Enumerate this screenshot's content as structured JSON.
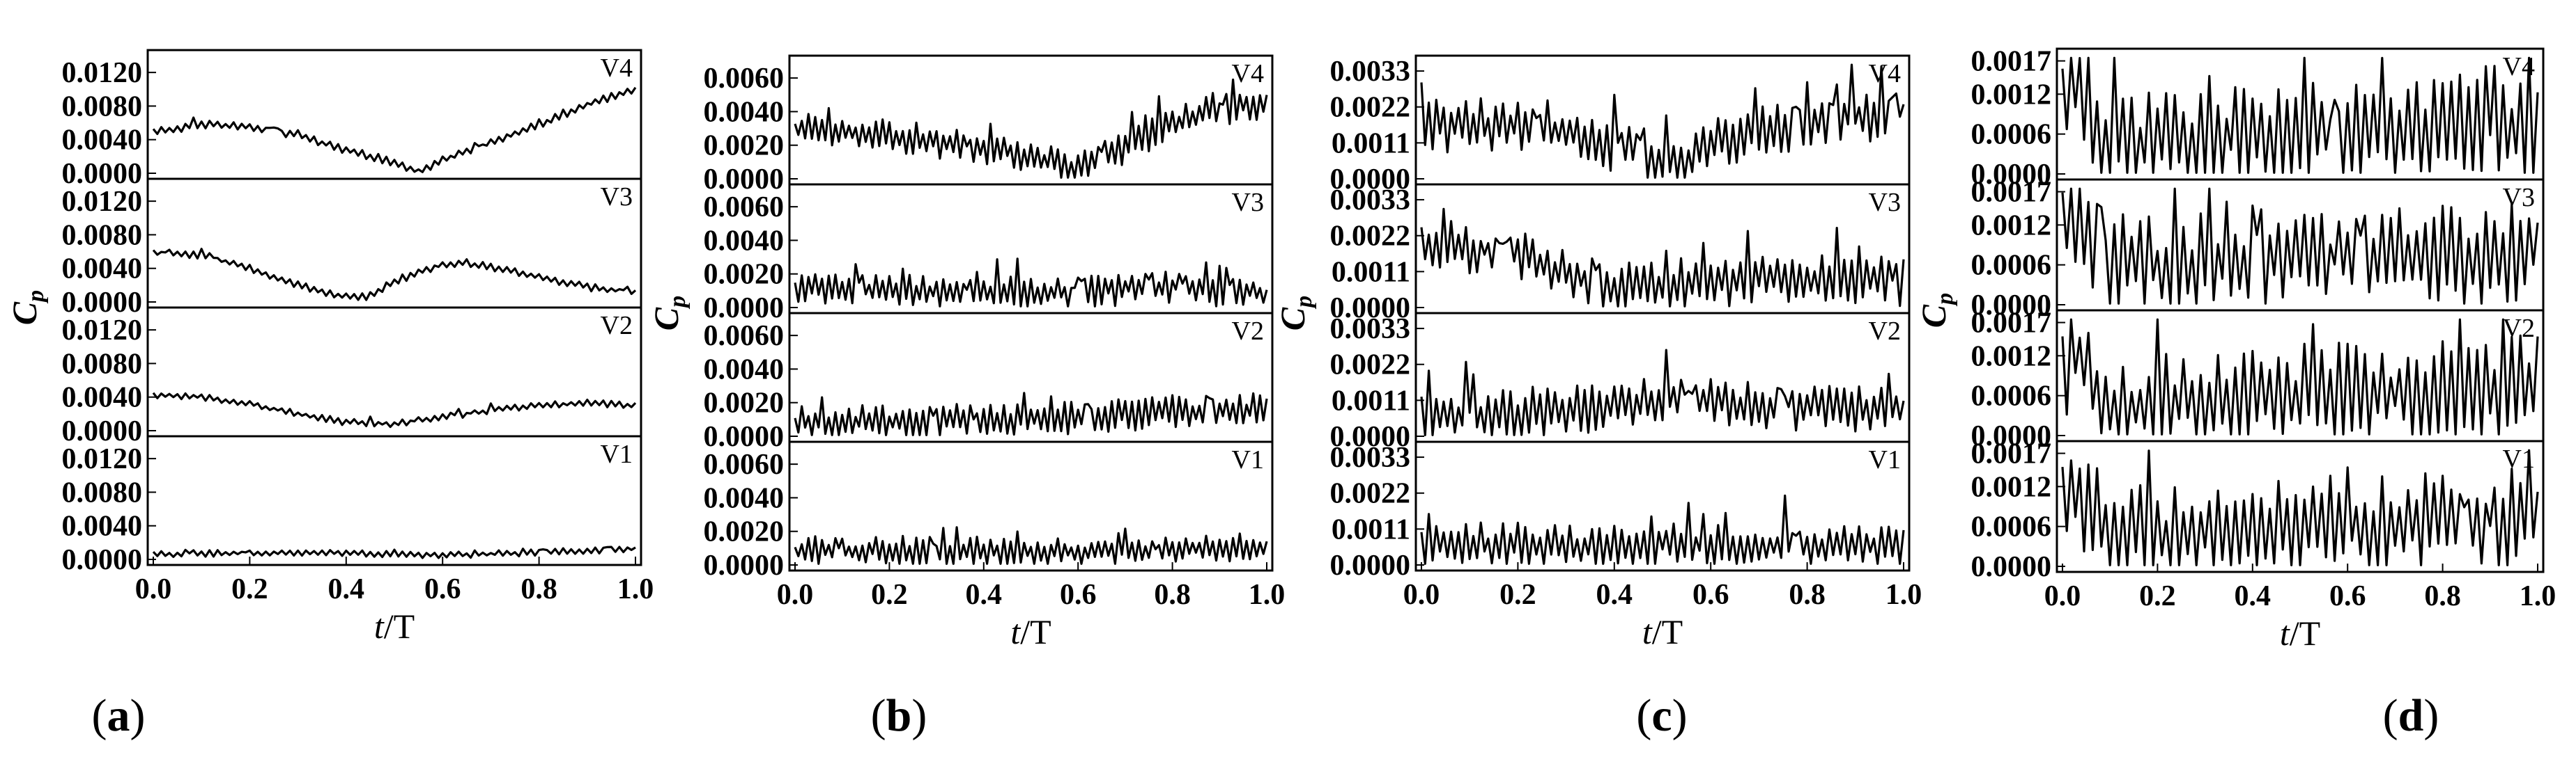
{
  "figure": {
    "caption_style": "paren-letter"
  },
  "panels": [
    {
      "caption": "a",
      "xlabel_italic": "t",
      "xlabel_rest": "/T",
      "ylabel_main": "C",
      "ylabel_sub": "p",
      "xticks": [
        "0.0",
        "0.2",
        "0.4",
        "0.6",
        "0.8",
        "1.0"
      ],
      "yticks": [
        "0.0000",
        "0.0040",
        "0.0080",
        "0.0120"
      ],
      "subplots": [
        {
          "label": "V4"
        },
        {
          "label": "V3"
        },
        {
          "label": "V2"
        },
        {
          "label": "V1"
        }
      ]
    },
    {
      "caption": "b",
      "xlabel_italic": "t",
      "xlabel_rest": "/T",
      "ylabel_main": "C",
      "ylabel_sub": "p",
      "xticks": [
        "0.0",
        "0.2",
        "0.4",
        "0.6",
        "0.8",
        "1.0"
      ],
      "yticks": [
        "0.0000",
        "0.0020",
        "0.0040",
        "0.0060"
      ],
      "subplots": [
        {
          "label": "V4"
        },
        {
          "label": "V3"
        },
        {
          "label": "V2"
        },
        {
          "label": "V1"
        }
      ]
    },
    {
      "caption": "c",
      "xlabel_italic": "t",
      "xlabel_rest": "/T",
      "ylabel_main": "C",
      "ylabel_sub": "p",
      "xticks": [
        "0.0",
        "0.2",
        "0.4",
        "0.6",
        "0.8",
        "1.0"
      ],
      "yticks": [
        "0.0000",
        "0.0011",
        "0.0022",
        "0.0033"
      ],
      "subplots": [
        {
          "label": "V4"
        },
        {
          "label": "V3"
        },
        {
          "label": "V2"
        },
        {
          "label": "V1"
        }
      ]
    },
    {
      "caption": "d",
      "xlabel_italic": "t",
      "xlabel_rest": "/T",
      "ylabel_main": "C",
      "ylabel_sub": "p",
      "xticks": [
        "0.0",
        "0.2",
        "0.4",
        "0.6",
        "0.8",
        "1.0"
      ],
      "yticks": [
        "0.0000",
        "0.0006",
        "0.0012",
        "0.0017"
      ],
      "subplots": [
        {
          "label": "V4"
        },
        {
          "label": "V3"
        },
        {
          "label": "V2"
        },
        {
          "label": "V1"
        }
      ]
    }
  ],
  "chart_data": [
    {
      "type": "line",
      "panel": "a",
      "title": "",
      "xlabel": "t/T",
      "ylabel": "Cp",
      "xlim": [
        0,
        1
      ],
      "ylim": [
        0,
        0.014
      ],
      "yticks": [
        0,
        0.004,
        0.008,
        0.012
      ],
      "series": [
        {
          "name": "V4",
          "x": [
            0,
            0.1,
            0.2,
            0.3,
            0.4,
            0.5,
            0.55,
            0.6,
            0.7,
            0.8,
            0.9,
            1.0
          ],
          "values": [
            0.0049,
            0.0058,
            0.0056,
            0.0045,
            0.0028,
            0.0013,
            0.0003,
            0.0015,
            0.0036,
            0.0058,
            0.0082,
            0.01
          ],
          "noise": 0.0005,
          "jitter_points": 120
        },
        {
          "name": "V3",
          "x": [
            0,
            0.1,
            0.2,
            0.3,
            0.4,
            0.45,
            0.5,
            0.6,
            0.7,
            0.8,
            0.9,
            1.0
          ],
          "values": [
            0.0058,
            0.0056,
            0.004,
            0.002,
            0.0006,
            0.0007,
            0.0025,
            0.0045,
            0.0042,
            0.003,
            0.0018,
            0.0012
          ],
          "noise": 0.0005,
          "jitter_points": 120
        },
        {
          "name": "V2",
          "x": [
            0,
            0.1,
            0.2,
            0.3,
            0.4,
            0.5,
            0.6,
            0.7,
            0.8,
            0.9,
            1.0
          ],
          "values": [
            0.0042,
            0.004,
            0.0032,
            0.002,
            0.001,
            0.0008,
            0.0016,
            0.0024,
            0.003,
            0.0033,
            0.003
          ],
          "noise": 0.0004,
          "jitter_points": 120
        },
        {
          "name": "V1",
          "x": [
            0,
            0.2,
            0.4,
            0.6,
            0.8,
            1.0
          ],
          "values": [
            0.0006,
            0.0008,
            0.0007,
            0.0005,
            0.0008,
            0.0013
          ],
          "noise": 0.0004,
          "jitter_points": 120
        }
      ]
    },
    {
      "type": "line",
      "panel": "b",
      "title": "",
      "xlabel": "t/T",
      "ylabel": "Cp",
      "xlim": [
        0,
        1
      ],
      "ylim": [
        0,
        0.007
      ],
      "yticks": [
        0,
        0.002,
        0.004,
        0.006
      ],
      "series": [
        {
          "name": "V4",
          "x": [
            0,
            0.1,
            0.2,
            0.3,
            0.4,
            0.5,
            0.6,
            0.7,
            0.8,
            0.9,
            1.0
          ],
          "values": [
            0.003,
            0.0028,
            0.0026,
            0.0022,
            0.0018,
            0.0012,
            0.0006,
            0.0018,
            0.0032,
            0.0042,
            0.0045
          ],
          "noise": 0.001,
          "jitter_points": 140
        },
        {
          "name": "V3",
          "x": [
            0,
            0.2,
            0.4,
            0.6,
            0.8,
            1.0
          ],
          "values": [
            0.0012,
            0.001,
            0.0009,
            0.0009,
            0.0012,
            0.0008
          ],
          "noise": 0.001,
          "jitter_points": 140
        },
        {
          "name": "V2",
          "x": [
            0,
            0.2,
            0.4,
            0.6,
            0.8,
            1.0
          ],
          "values": [
            0.0008,
            0.0009,
            0.001,
            0.0011,
            0.0014,
            0.0016
          ],
          "noise": 0.001,
          "jitter_points": 140
        },
        {
          "name": "V1",
          "x": [
            0,
            0.2,
            0.4,
            0.6,
            0.8,
            1.0
          ],
          "values": [
            0.0008,
            0.0009,
            0.0008,
            0.0008,
            0.0009,
            0.0009
          ],
          "noise": 0.0009,
          "jitter_points": 140
        }
      ]
    },
    {
      "type": "line",
      "panel": "c",
      "title": "",
      "xlabel": "t/T",
      "ylabel": "Cp",
      "xlim": [
        0,
        1
      ],
      "ylim": [
        0,
        0.0036
      ],
      "yticks": [
        0,
        0.0011,
        0.0022,
        0.0033
      ],
      "series": [
        {
          "name": "V4",
          "x": [
            0,
            0.1,
            0.2,
            0.3,
            0.4,
            0.5,
            0.55,
            0.6,
            0.7,
            0.8,
            0.9,
            1.0
          ],
          "values": [
            0.0016,
            0.0016,
            0.0016,
            0.0015,
            0.001,
            0.0006,
            0.0004,
            0.001,
            0.0015,
            0.0017,
            0.0019,
            0.002
          ],
          "noise": 0.0008,
          "jitter_points": 130
        },
        {
          "name": "V3",
          "x": [
            0,
            0.1,
            0.2,
            0.3,
            0.4,
            0.5,
            0.6,
            0.7,
            0.8,
            0.9,
            1.0
          ],
          "values": [
            0.002,
            0.0018,
            0.0016,
            0.001,
            0.0006,
            0.0007,
            0.0008,
            0.0009,
            0.0009,
            0.0009,
            0.0008
          ],
          "noise": 0.0008,
          "jitter_points": 130
        },
        {
          "name": "V2",
          "x": [
            0,
            0.2,
            0.4,
            0.5,
            0.6,
            0.8,
            1.0
          ],
          "values": [
            0.0006,
            0.0007,
            0.0009,
            0.0012,
            0.001,
            0.0009,
            0.0008
          ],
          "noise": 0.0008,
          "jitter_points": 130
        },
        {
          "name": "V1",
          "x": [
            0,
            0.2,
            0.4,
            0.6,
            0.8,
            1.0
          ],
          "values": [
            0.0006,
            0.0006,
            0.0005,
            0.0006,
            0.0006,
            0.0005
          ],
          "noise": 0.0007,
          "jitter_points": 130
        }
      ]
    },
    {
      "type": "line",
      "panel": "d",
      "title": "",
      "xlabel": "t/T",
      "ylabel": "Cp",
      "xlim": [
        0,
        1
      ],
      "ylim": [
        0,
        0.0018
      ],
      "yticks": [
        0,
        0.0006,
        0.0012,
        0.0017
      ],
      "series": [
        {
          "name": "V4",
          "x": [
            0,
            0.02,
            0.1,
            0.3,
            0.5,
            0.7,
            0.9,
            1.0
          ],
          "values": [
            0.0009,
            0.0016,
            0.0004,
            0.0005,
            0.0006,
            0.0006,
            0.0008,
            0.0006
          ],
          "noise": 0.0008,
          "jitter_points": 110
        },
        {
          "name": "V3",
          "x": [
            0,
            0.02,
            0.1,
            0.3,
            0.5,
            0.7,
            0.9,
            1.0
          ],
          "values": [
            0.001,
            0.0014,
            0.0006,
            0.0006,
            0.0007,
            0.0007,
            0.0007,
            0.0009
          ],
          "noise": 0.0008,
          "jitter_points": 110
        },
        {
          "name": "V2",
          "x": [
            0,
            0.02,
            0.1,
            0.3,
            0.5,
            0.7,
            0.9,
            1.0
          ],
          "values": [
            0.0008,
            0.0013,
            0.0004,
            0.0005,
            0.0006,
            0.0006,
            0.0007,
            0.0008
          ],
          "noise": 0.0008,
          "jitter_points": 110
        },
        {
          "name": "V1",
          "x": [
            0,
            0.02,
            0.1,
            0.3,
            0.5,
            0.7,
            0.9,
            1.0
          ],
          "values": [
            0.0008,
            0.0013,
            0.0004,
            0.0005,
            0.0006,
            0.0006,
            0.0007,
            0.0008
          ],
          "noise": 0.0008,
          "jitter_points": 110
        }
      ]
    }
  ]
}
